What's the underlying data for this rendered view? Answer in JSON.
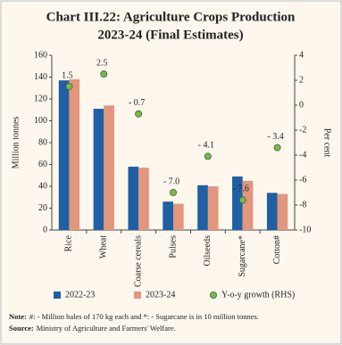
{
  "chart_data": {
    "type": "bar",
    "title": [
      "Chart III.22: Agriculture Crops Production",
      "2023-24 (Final Estimates)"
    ],
    "ylabel": "Million tonnes",
    "y2label": "Per cent",
    "categories": [
      "Rice",
      "Wheat",
      "Coarse cereals",
      "Pulses",
      "Oilseeds",
      "Sugarcane*",
      "Cotton#"
    ],
    "series": [
      {
        "name": "2022-23",
        "type": "bar",
        "color": "#1f5fa3",
        "values": [
          137,
          111,
          58,
          26,
          41,
          49,
          34
        ]
      },
      {
        "name": "2023-24",
        "type": "bar",
        "color": "#e2967c",
        "values": [
          138,
          114,
          57,
          24,
          40,
          45,
          33
        ]
      },
      {
        "name": "Y-o-y growth (RHS)",
        "type": "scatter",
        "axis": "y2",
        "color": "#7cb652",
        "values": [
          1.5,
          2.5,
          -0.7,
          -7.0,
          -4.1,
          -7.6,
          -3.4
        ],
        "value_labels": [
          "1.5",
          "2.5",
          "- 0.7",
          "- 7.0",
          "- 4.1",
          "- 7.6",
          "- 3.4"
        ]
      }
    ],
    "ylim": [
      0,
      160
    ],
    "yticks": [
      0,
      20,
      40,
      60,
      80,
      100,
      120,
      140,
      160
    ],
    "y2lim": [
      -10,
      4
    ],
    "y2ticks": [
      -10,
      -8,
      -6,
      -4,
      -2,
      0,
      2,
      4
    ],
    "notes": [
      {
        "label": "Note:",
        "text": "#: - Million bales of 170 kg each and *: - Sugarcane is in 10 million tonnes."
      },
      {
        "label": "Source:",
        "text": "Ministry of Agriculture and Farmers' Welfare."
      }
    ]
  }
}
